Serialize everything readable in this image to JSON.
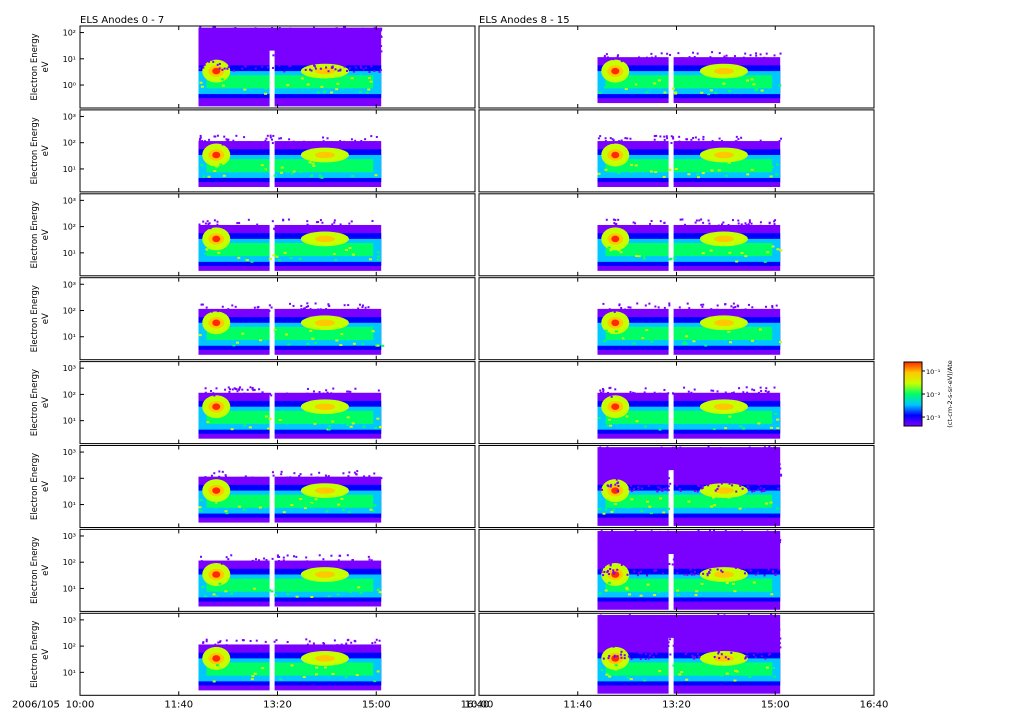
{
  "chart_data": {
    "type": "heatmap",
    "columns": [
      {
        "title": "ELS Anodes 0 - 7",
        "anodes": [
          0,
          1,
          2,
          3,
          4,
          5,
          6,
          7
        ]
      },
      {
        "title": "ELS Anodes 8 - 15",
        "anodes": [
          8,
          9,
          10,
          11,
          12,
          13,
          14,
          15
        ]
      }
    ],
    "rows": 8,
    "ylabel": "Electron Energy",
    "yunit": "eV",
    "date_label": "2006/105",
    "x_ticks": [
      "10:00",
      "11:40",
      "13:20",
      "15:00",
      "16:40"
    ],
    "xlim": [
      "10:00",
      "16:40"
    ],
    "data_window": [
      "12:00",
      "15:05"
    ],
    "yscale": "log",
    "y_ticks_top": [
      "10²",
      "10¹",
      "10⁰"
    ],
    "y_ticks_other": [
      "10³",
      "10²",
      "10¹"
    ],
    "colorbar": {
      "label": "(ct-cm-2-s-sr-eV)/Ate",
      "ticks": [
        "10⁻¹",
        "10⁻²",
        "10⁻³"
      ],
      "colors": [
        "#7a00ff",
        "#0000ff",
        "#00c8ff",
        "#00ff64",
        "#c8ff00",
        "#ffc800",
        "#ff2a00"
      ]
    }
  }
}
